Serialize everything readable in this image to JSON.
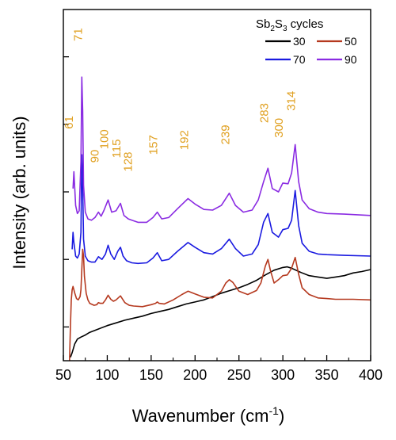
{
  "chart_data": {
    "type": "line",
    "title": "",
    "xlabel": "Wavenumber (cm",
    "xlabel_sup": "-1",
    "xlabel_end": ")",
    "ylabel": "Intensity (arb. units)",
    "xlim": [
      50,
      400
    ],
    "xticks": [
      50,
      100,
      150,
      200,
      250,
      300,
      350,
      400
    ],
    "yticks": [
      0.5,
      1.5,
      2.5,
      3.5,
      4.5
    ],
    "ylim": [
      0,
      5.2
    ],
    "legend": {
      "title_prefix": "Sb",
      "title_sub1": "2",
      "title_mid": "S",
      "title_sub2": "3",
      "title_suffix": " cycles",
      "placement": "top-right"
    },
    "peak_color": "#e0a020",
    "peak_labels": [
      {
        "text": "61",
        "x": 61,
        "y": 3.43
      },
      {
        "text": "71",
        "x": 71,
        "y": 4.73
      },
      {
        "text": "90",
        "x": 90,
        "y": 2.93
      },
      {
        "text": "100",
        "x": 101,
        "y": 3.13
      },
      {
        "text": "115",
        "x": 115,
        "y": 3.0
      },
      {
        "text": "128",
        "x": 128,
        "y": 2.8
      },
      {
        "text": "157",
        "x": 157,
        "y": 3.05
      },
      {
        "text": "192",
        "x": 192,
        "y": 3.12
      },
      {
        "text": "239",
        "x": 239,
        "y": 3.2
      },
      {
        "text": "283",
        "x": 283,
        "y": 3.52
      },
      {
        "text": "300",
        "x": 300,
        "y": 3.3
      },
      {
        "text": "314",
        "x": 314,
        "y": 3.7
      }
    ],
    "series": [
      {
        "name": "30",
        "color": "#000000",
        "x": [
          58,
          60,
          63,
          66,
          70,
          75,
          80,
          90,
          100,
          110,
          120,
          130,
          140,
          150,
          160,
          170,
          180,
          190,
          200,
          210,
          220,
          230,
          240,
          250,
          260,
          270,
          280,
          290,
          300,
          305,
          310,
          320,
          330,
          340,
          350,
          360,
          370,
          380,
          390,
          400
        ],
        "y": [
          0.05,
          0.12,
          0.25,
          0.32,
          0.35,
          0.38,
          0.42,
          0.47,
          0.52,
          0.56,
          0.6,
          0.63,
          0.66,
          0.7,
          0.73,
          0.76,
          0.8,
          0.84,
          0.87,
          0.9,
          0.95,
          1.0,
          1.04,
          1.08,
          1.13,
          1.19,
          1.27,
          1.34,
          1.38,
          1.39,
          1.37,
          1.31,
          1.26,
          1.24,
          1.22,
          1.24,
          1.26,
          1.3,
          1.32,
          1.35
        ]
      },
      {
        "name": "50",
        "color": "#b5391f",
        "x": [
          57,
          58,
          59,
          60,
          61,
          62,
          63,
          65,
          67,
          69,
          70,
          71,
          72,
          73,
          74,
          76,
          78,
          80,
          85,
          88,
          90,
          92,
          95,
          98,
          101,
          104,
          107,
          110,
          115,
          120,
          125,
          130,
          140,
          150,
          155,
          157,
          159,
          165,
          175,
          185,
          192,
          200,
          210,
          220,
          230,
          235,
          239,
          243,
          250,
          260,
          270,
          275,
          280,
          283,
          286,
          290,
          295,
          300,
          305,
          310,
          314,
          318,
          322,
          330,
          340,
          350,
          360,
          380,
          400
        ],
        "y": [
          0.0,
          0.5,
          0.9,
          1.05,
          1.1,
          1.05,
          1.0,
          0.92,
          0.9,
          0.95,
          1.05,
          1.35,
          1.65,
          1.55,
          1.25,
          1.0,
          0.9,
          0.85,
          0.82,
          0.83,
          0.86,
          0.85,
          0.85,
          0.9,
          0.97,
          0.91,
          0.88,
          0.9,
          0.96,
          0.86,
          0.82,
          0.81,
          0.8,
          0.83,
          0.85,
          0.87,
          0.85,
          0.84,
          0.9,
          0.98,
          1.03,
          0.99,
          0.94,
          0.93,
          1.03,
          1.15,
          1.2,
          1.16,
          1.03,
          0.98,
          1.04,
          1.15,
          1.4,
          1.5,
          1.33,
          1.15,
          1.2,
          1.26,
          1.27,
          1.37,
          1.53,
          1.28,
          1.08,
          0.98,
          0.93,
          0.92,
          0.91,
          0.91,
          0.9
        ]
      },
      {
        "name": "70",
        "color": "#1a1ae0",
        "x": [
          60,
          61,
          62,
          64,
          66,
          68,
          70,
          71,
          72,
          73,
          75,
          78,
          82,
          86,
          90,
          94,
          98,
          101,
          104,
          108,
          112,
          115,
          118,
          122,
          128,
          135,
          145,
          152,
          157,
          162,
          170,
          180,
          192,
          200,
          210,
          220,
          230,
          239,
          246,
          255,
          265,
          272,
          278,
          283,
          288,
          295,
          300,
          306,
          310,
          314,
          318,
          322,
          330,
          340,
          350,
          370,
          400
        ],
        "y": [
          1.65,
          1.9,
          1.75,
          1.55,
          1.52,
          1.58,
          1.9,
          3.05,
          2.6,
          1.8,
          1.55,
          1.48,
          1.46,
          1.46,
          1.54,
          1.5,
          1.58,
          1.71,
          1.58,
          1.5,
          1.62,
          1.68,
          1.55,
          1.48,
          1.45,
          1.44,
          1.45,
          1.52,
          1.6,
          1.48,
          1.5,
          1.62,
          1.75,
          1.68,
          1.6,
          1.58,
          1.66,
          1.8,
          1.66,
          1.55,
          1.58,
          1.72,
          2.05,
          2.18,
          1.9,
          1.83,
          1.94,
          1.96,
          2.08,
          2.52,
          2.0,
          1.74,
          1.62,
          1.58,
          1.57,
          1.56,
          1.55
        ]
      },
      {
        "name": "90",
        "color": "#8a2be2",
        "x": [
          61,
          62,
          63,
          64,
          66,
          68,
          70,
          71,
          72,
          73,
          75,
          78,
          82,
          86,
          90,
          93,
          96,
          101,
          105,
          110,
          115,
          119,
          124,
          128,
          135,
          145,
          152,
          157,
          162,
          170,
          180,
          192,
          200,
          210,
          220,
          230,
          239,
          246,
          255,
          265,
          272,
          278,
          283,
          288,
          295,
          300,
          306,
          310,
          314,
          318,
          322,
          330,
          340,
          350,
          370,
          400
        ],
        "y": [
          2.55,
          2.8,
          2.55,
          2.3,
          2.18,
          2.22,
          2.95,
          4.2,
          3.7,
          2.6,
          2.2,
          2.1,
          2.08,
          2.12,
          2.2,
          2.14,
          2.22,
          2.38,
          2.2,
          2.22,
          2.33,
          2.15,
          2.1,
          2.08,
          2.05,
          2.05,
          2.12,
          2.2,
          2.1,
          2.12,
          2.25,
          2.4,
          2.32,
          2.24,
          2.23,
          2.3,
          2.48,
          2.3,
          2.2,
          2.23,
          2.38,
          2.65,
          2.85,
          2.55,
          2.5,
          2.63,
          2.62,
          2.78,
          3.2,
          2.65,
          2.38,
          2.25,
          2.2,
          2.18,
          2.17,
          2.15
        ]
      }
    ]
  }
}
